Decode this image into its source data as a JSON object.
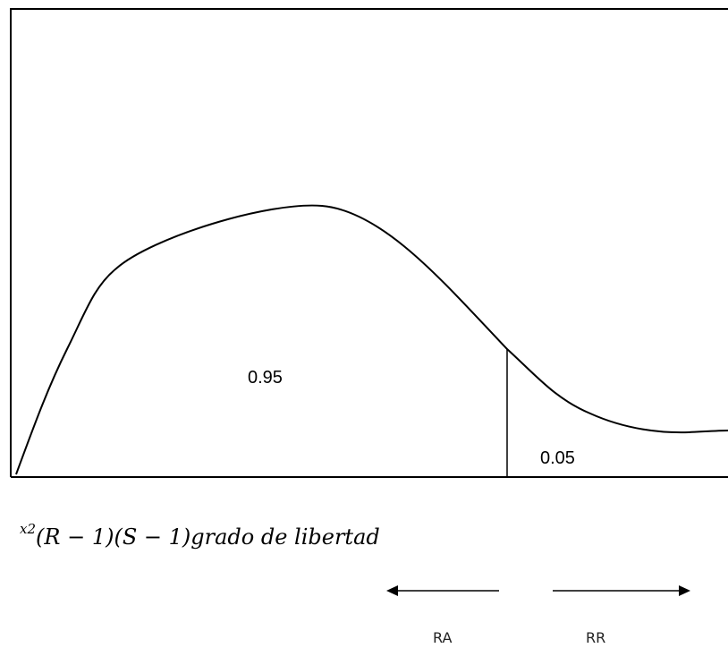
{
  "diagram": {
    "acceptance_area": "0.95",
    "rejection_area": "0.05",
    "formula": {
      "symbol": "x",
      "exponent": "2",
      "text": "(R − 1)(S − 1)grado de libertad"
    },
    "left_region": "RA",
    "right_region": "RR"
  }
}
